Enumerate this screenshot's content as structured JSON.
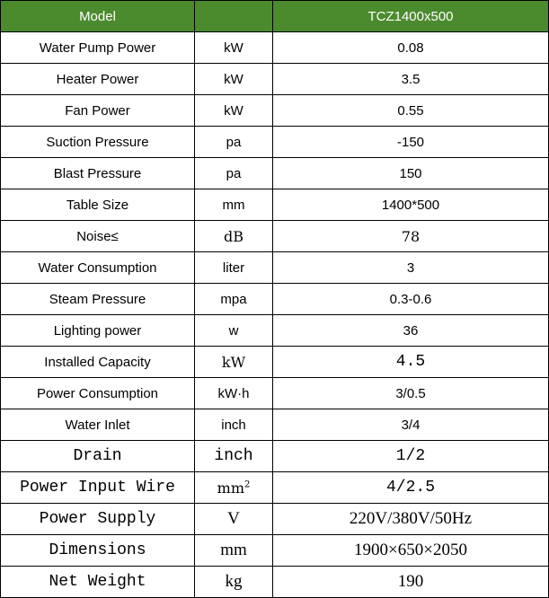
{
  "table": {
    "header": {
      "label": "Model",
      "unit": "",
      "value": "TCZ1400x500",
      "bg": "#4c8a2e"
    },
    "rows": [
      {
        "label": "Water Pump Power",
        "unit": "kW",
        "value": "0.08"
      },
      {
        "label": "Heater Power",
        "unit": "kW",
        "value": "3.5"
      },
      {
        "label": "Fan Power",
        "unit": "kW",
        "value": "0.55"
      },
      {
        "label": "Suction Pressure",
        "unit": "pa",
        "value": "-150"
      },
      {
        "label": "Blast Pressure",
        "unit": "pa",
        "value": "150"
      },
      {
        "label": "Table Size",
        "unit": "mm",
        "value": "1400*500"
      },
      {
        "label": "Noise≤",
        "unit": "dB",
        "value": "78"
      },
      {
        "label": "Water Consumption",
        "unit": "liter",
        "value": "3"
      },
      {
        "label": "Steam Pressure",
        "unit": "mpa",
        "value": "0.3-0.6"
      },
      {
        "label": "Lighting power",
        "unit": "w",
        "value": "36"
      },
      {
        "label": "Installed Capacity",
        "unit": "kW",
        "value": "4.5"
      },
      {
        "label": "Power Consumption",
        "unit": "kW·h",
        "value": "3/0.5"
      },
      {
        "label": "Water Inlet",
        "unit": "inch",
        "value": "3/4"
      },
      {
        "label": "Drain",
        "unit": "inch",
        "value": "1/2"
      },
      {
        "label": "Power Input Wire",
        "unit": "mm",
        "unit_sup": "2",
        "value": "4/2.5"
      },
      {
        "label": "Power Supply",
        "unit": "V",
        "value": "220V/380V/50Hz"
      },
      {
        "label": "Dimensions",
        "unit": "mm",
        "value": "1900×650×2050"
      },
      {
        "label": "Net Weight",
        "unit": "kg",
        "value": "190"
      }
    ]
  }
}
